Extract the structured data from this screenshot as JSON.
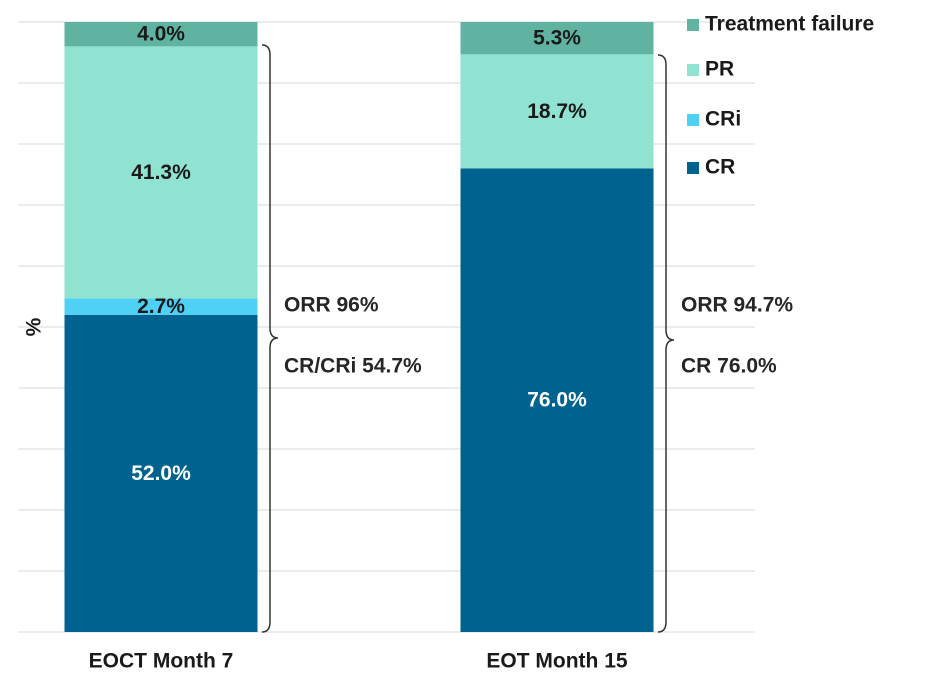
{
  "chart_data": {
    "type": "bar",
    "stacked": true,
    "y_label": "%",
    "categories": [
      "EOCT Month 7",
      "EOT Month 15"
    ],
    "series": [
      {
        "name": "CR",
        "color": "#00628f",
        "values": [
          52.0,
          76.0
        ],
        "value_labels": [
          "52.0%",
          "76.0%"
        ]
      },
      {
        "name": "CRi",
        "color": "#4fd0f5",
        "values": [
          2.7,
          null
        ],
        "value_labels": [
          "2.7%",
          null
        ]
      },
      {
        "name": "PR",
        "color": "#8fe3d0",
        "values": [
          41.3,
          18.7
        ],
        "value_labels": [
          "41.3%",
          "18.7%"
        ]
      },
      {
        "name": "Treatment failure",
        "color": "#5fb3a0",
        "values": [
          4.0,
          5.3
        ],
        "value_labels": [
          "4.0%",
          "5.3%"
        ]
      }
    ],
    "annotations": [
      "ORR 96%",
      "CR/CRi 54.7%",
      "ORR 94.7%",
      "CR 76.0%"
    ],
    "ylim": [
      0,
      100
    ],
    "yticks": [
      0,
      10,
      20,
      30,
      40,
      50,
      60,
      70,
      80,
      90,
      100
    ],
    "grid": true
  }
}
